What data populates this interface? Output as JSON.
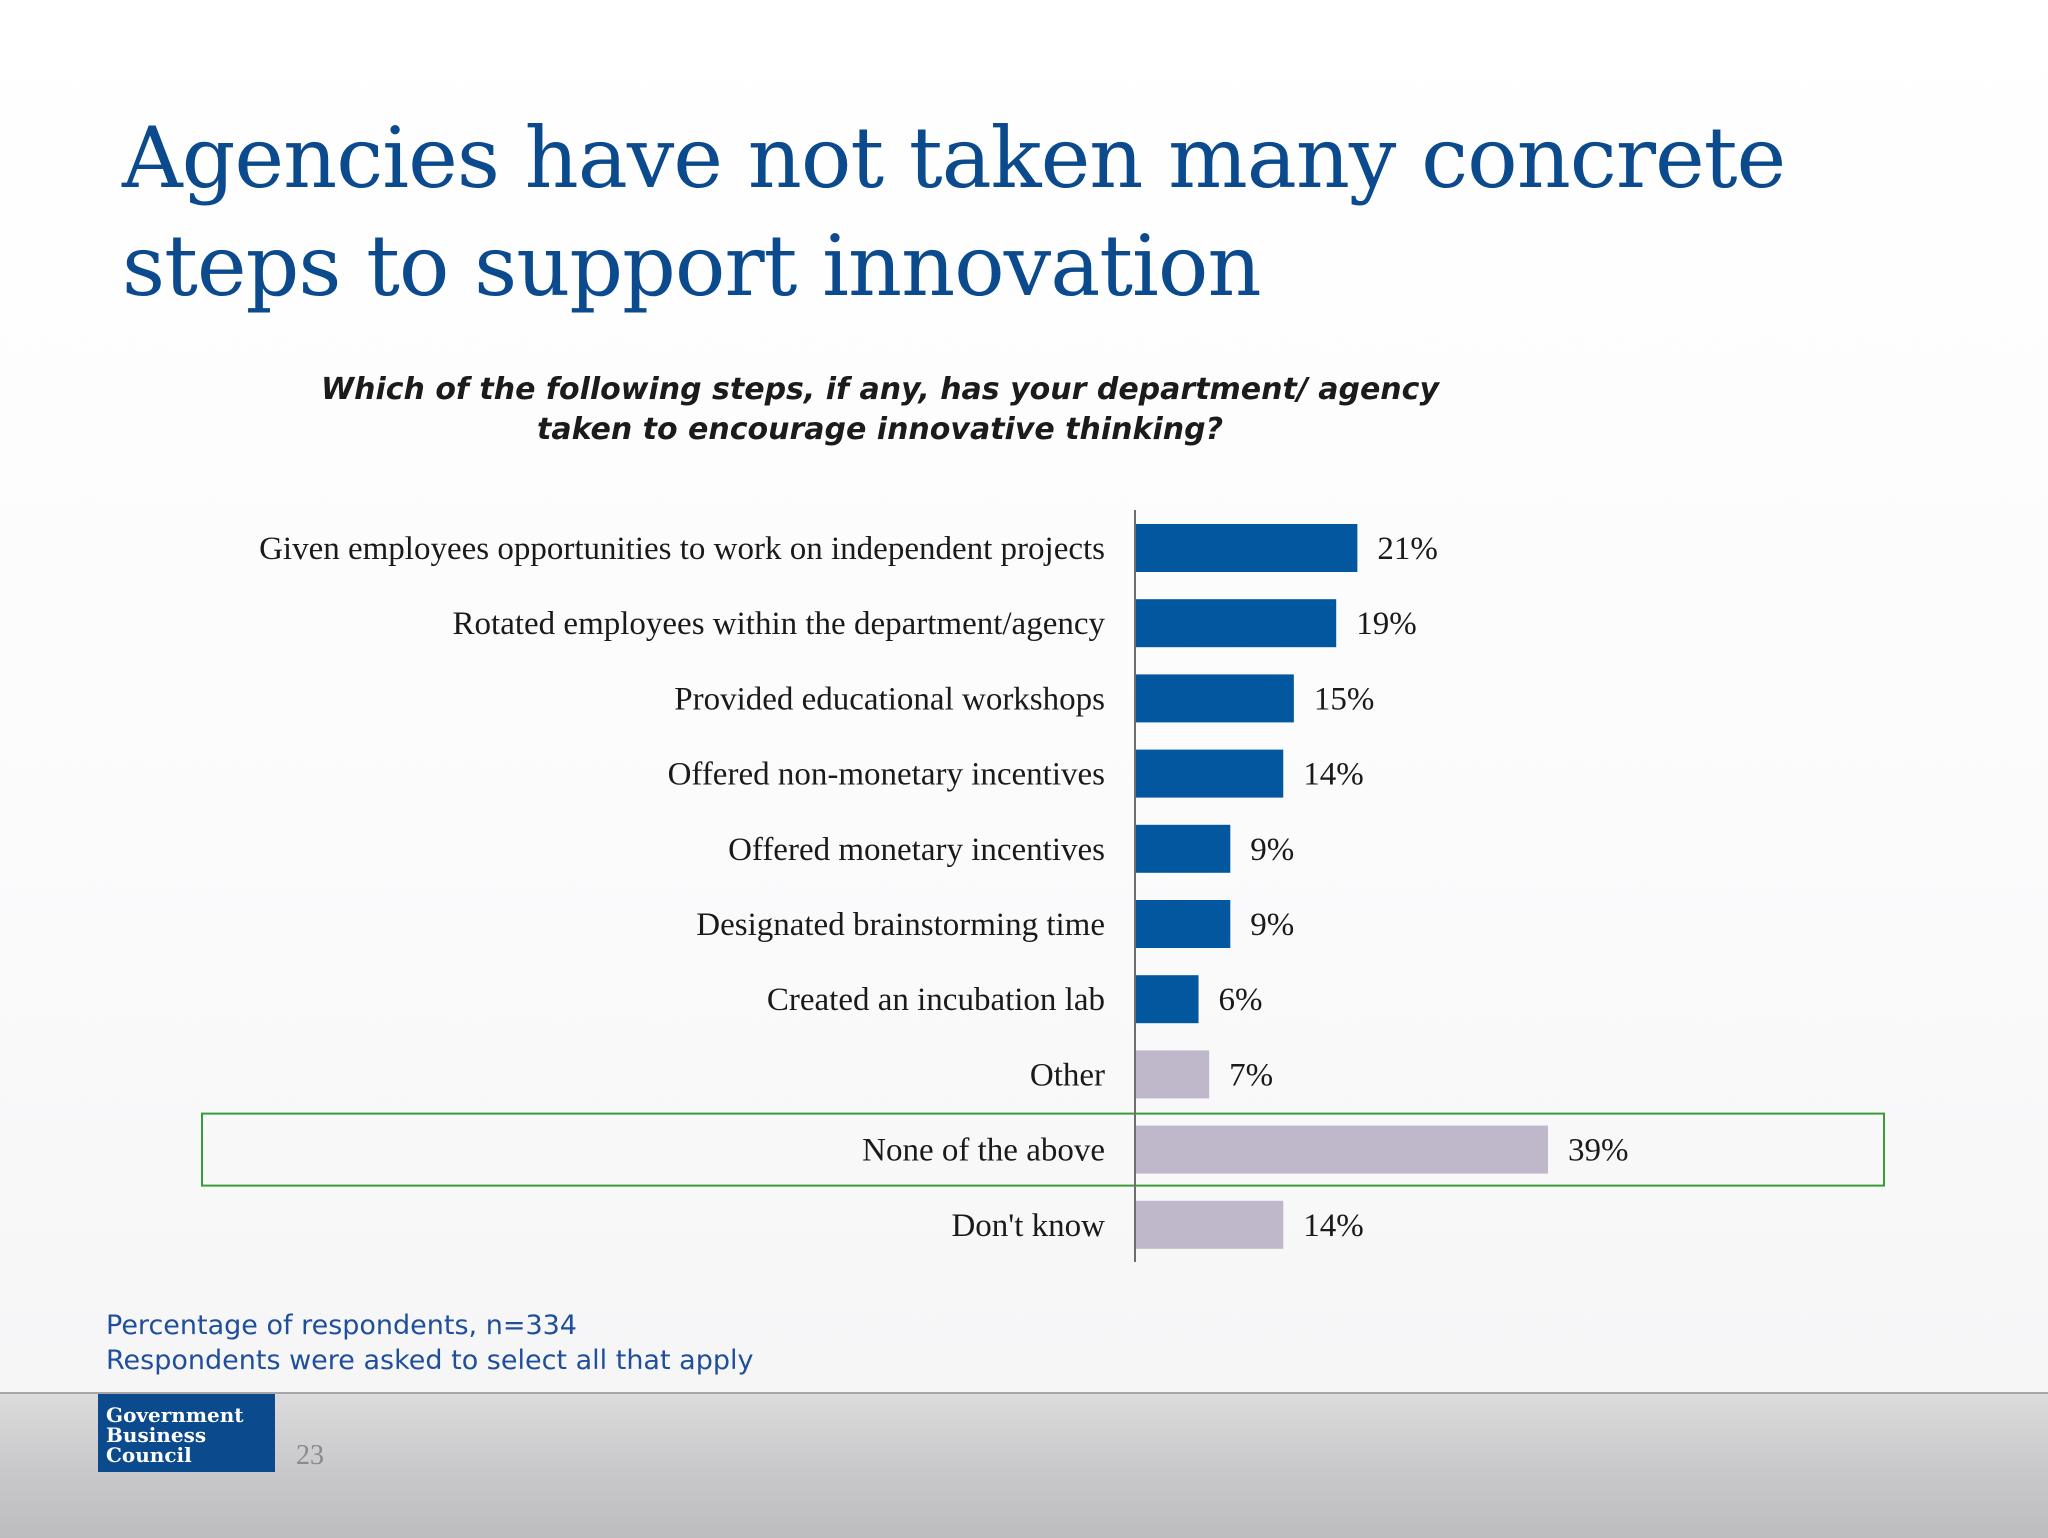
{
  "slide": {
    "title": "Agencies have not taken many concrete steps to support innovation",
    "question": "Which of the following steps, if any, has your department/ agency taken to encourage innovative thinking?"
  },
  "notes": {
    "line1": "Percentage of respondents, n=334",
    "line2": "Respondents were asked to select all that apply"
  },
  "footer": {
    "logo_lines": [
      "Government",
      "Business",
      "Council"
    ],
    "page_number": "23"
  },
  "colors": {
    "primary_bar": "#02579e",
    "secondary_bar": "#bfb7ca",
    "highlight_box": "#3a9b3a",
    "title": "#0b4a8c"
  },
  "chart_data": {
    "type": "bar",
    "orientation": "horizontal",
    "categories": [
      "Given employees opportunities to work on independent projects",
      "Rotated employees within the department/agency",
      "Provided educational workshops",
      "Offered non-monetary incentives",
      "Offered monetary incentives",
      "Designated brainstorming time",
      "Created an incubation lab",
      "Other",
      "None of the above",
      "Don't know"
    ],
    "values": [
      21,
      19,
      15,
      14,
      9,
      9,
      6,
      7,
      39,
      14
    ],
    "value_labels": [
      "21%",
      "19%",
      "15%",
      "14%",
      "9%",
      "9%",
      "6%",
      "7%",
      "39%",
      "14%"
    ],
    "bar_color_groups": [
      "primary",
      "primary",
      "primary",
      "primary",
      "primary",
      "primary",
      "primary",
      "secondary",
      "secondary",
      "secondary"
    ],
    "highlighted_category": "None of the above",
    "xlim": [
      0,
      39
    ],
    "unit": "%",
    "grid": false,
    "legend": "none"
  }
}
